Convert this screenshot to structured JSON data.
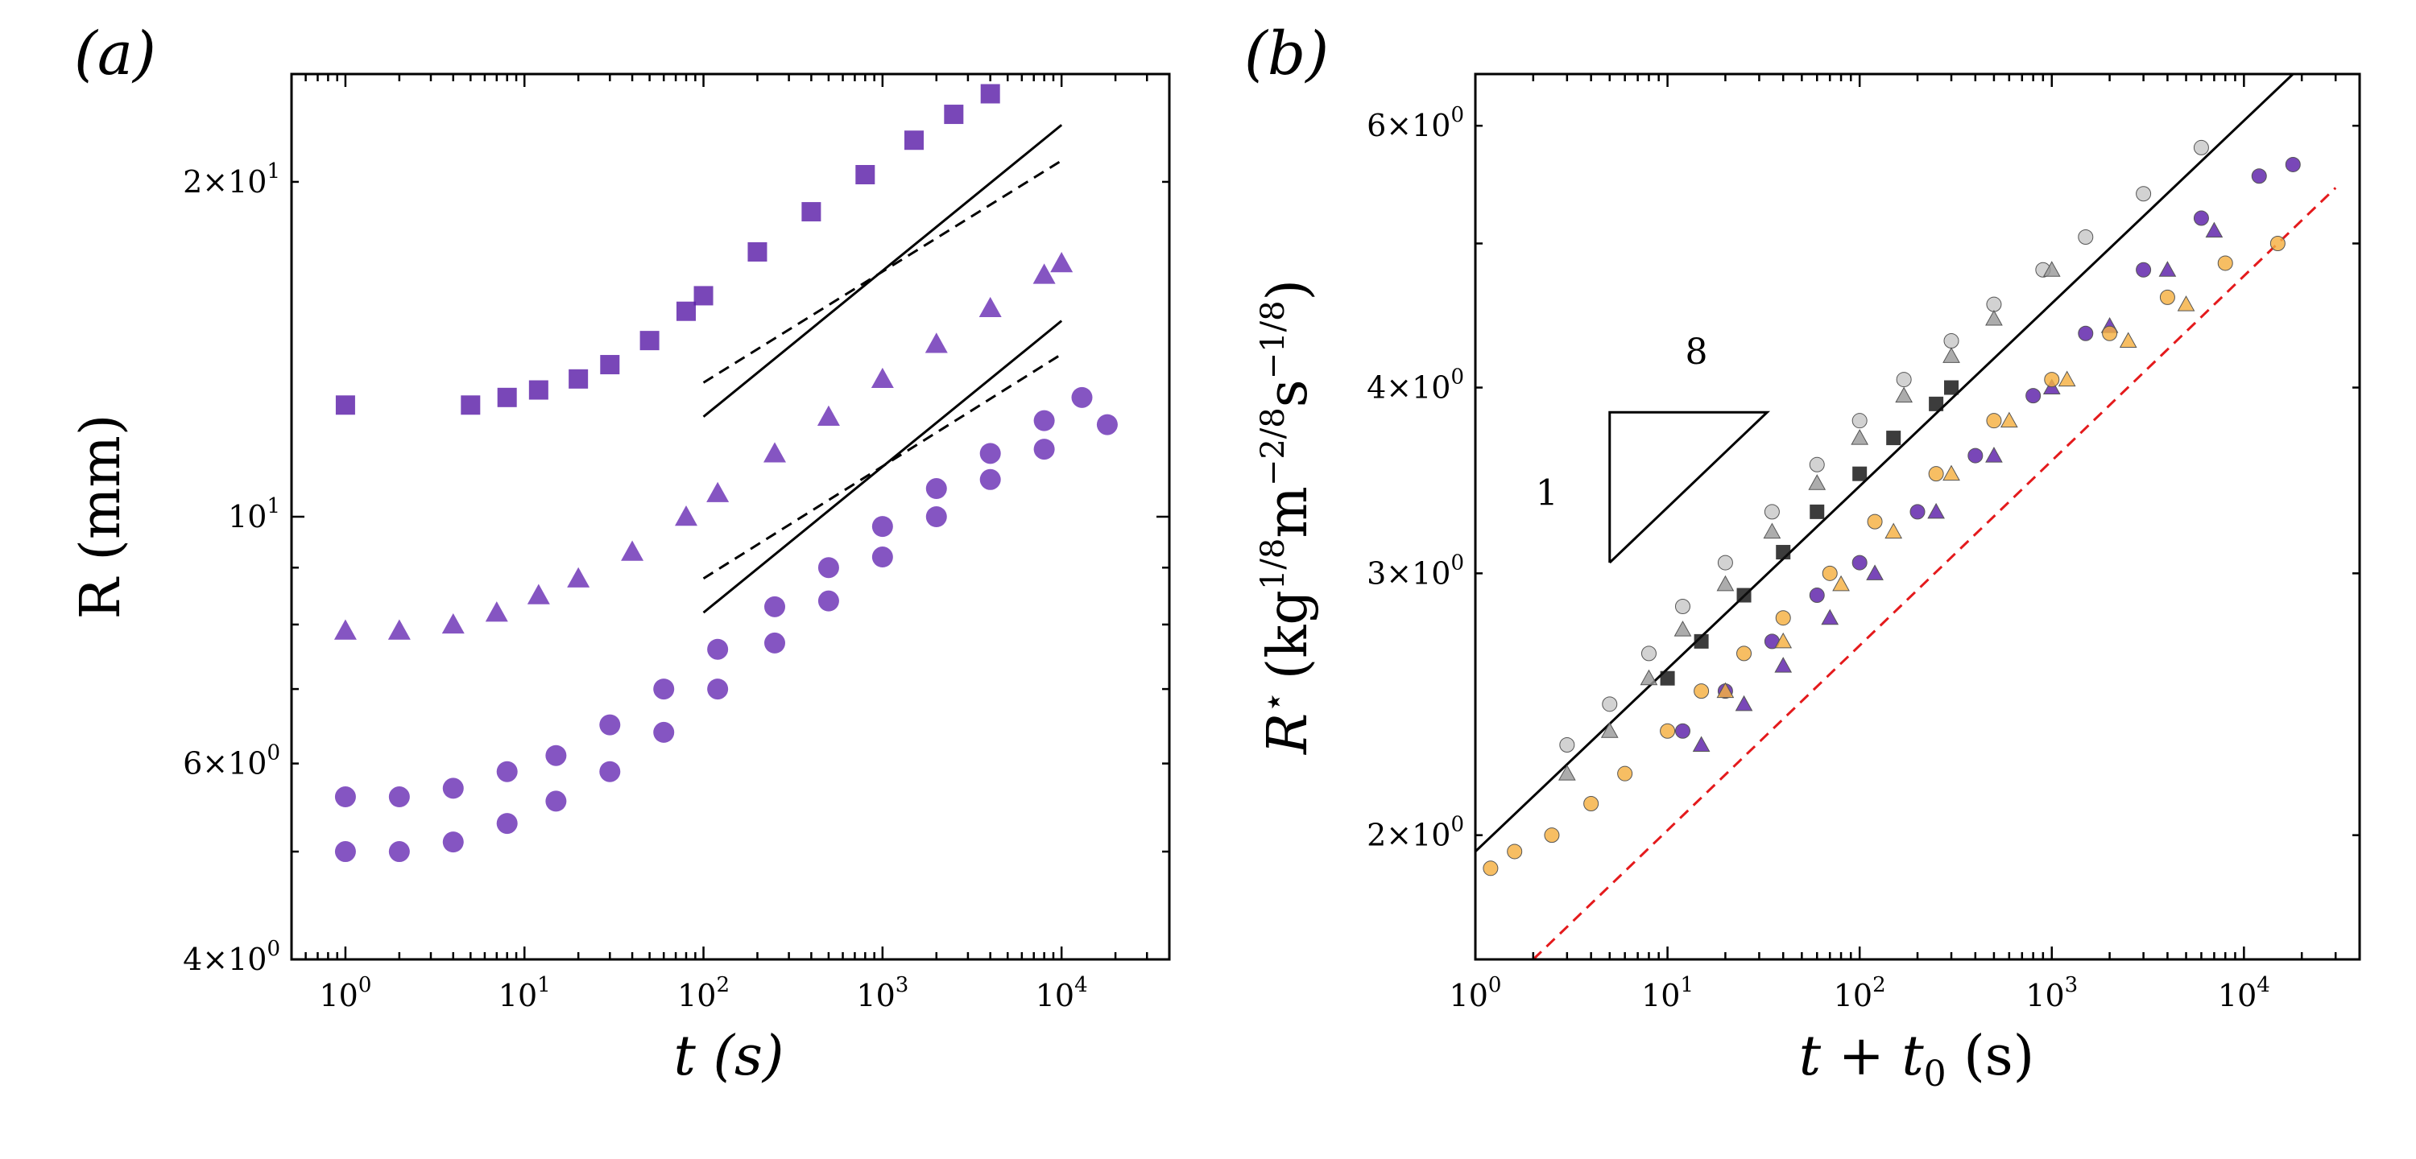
{
  "chart_data": [
    {
      "type": "scatter",
      "panel_label": "(a)",
      "xlabel": "t (s)",
      "ylabel": "R (mm)",
      "xscale": "log",
      "yscale": "log",
      "xlim": [
        0.5,
        40000
      ],
      "ylim": [
        4,
        25
      ],
      "xticks": [
        {
          "value": 1,
          "base": "10",
          "exp": "0"
        },
        {
          "value": 10,
          "base": "10",
          "exp": "1"
        },
        {
          "value": 100,
          "base": "10",
          "exp": "2"
        },
        {
          "value": 1000,
          "base": "10",
          "exp": "3"
        },
        {
          "value": 10000,
          "base": "10",
          "exp": "4"
        }
      ],
      "yticks": [
        {
          "value": 4,
          "text": "4×10",
          "exp": "0"
        },
        {
          "value": 6,
          "text": "6×10",
          "exp": "0"
        },
        {
          "value": 10,
          "text": "10",
          "exp": "1"
        },
        {
          "value": 20,
          "text": "2×10",
          "exp": "1"
        }
      ],
      "series": [
        {
          "name": "squares",
          "marker": "square",
          "color": "#5b1fa8",
          "x": [
            1,
            5,
            8,
            12,
            20,
            30,
            50,
            80,
            100,
            200,
            400,
            800,
            1500,
            2500,
            4000
          ],
          "y": [
            12.6,
            12.6,
            12.8,
            13.0,
            13.3,
            13.7,
            14.4,
            15.3,
            15.8,
            17.3,
            18.8,
            20.3,
            21.8,
            23.0,
            24.0
          ]
        },
        {
          "name": "triangles",
          "marker": "triangle",
          "color": "#6a2fb5",
          "x": [
            1,
            2,
            4,
            7,
            12,
            20,
            40,
            80,
            120,
            250,
            500,
            1000,
            2000,
            4000,
            8000,
            10000
          ],
          "y": [
            7.9,
            7.9,
            8.0,
            8.2,
            8.5,
            8.8,
            9.3,
            10.0,
            10.5,
            11.4,
            12.3,
            13.3,
            14.3,
            15.4,
            16.5,
            16.9
          ]
        },
        {
          "name": "circles upper",
          "marker": "circle",
          "color": "#6a2fb5",
          "x": [
            1,
            2,
            4,
            8,
            15,
            30,
            60,
            120,
            250,
            500,
            1000,
            2000,
            4000,
            8000,
            13000
          ],
          "y": [
            5.6,
            5.6,
            5.7,
            5.9,
            6.1,
            6.5,
            7.0,
            7.6,
            8.3,
            9.0,
            9.8,
            10.6,
            11.4,
            12.2,
            12.8
          ]
        },
        {
          "name": "circles lower",
          "marker": "circle",
          "color": "#6a2fb5",
          "x": [
            1,
            2,
            4,
            8,
            15,
            30,
            60,
            120,
            250,
            500,
            1000,
            2000,
            4000,
            8000,
            18000
          ],
          "y": [
            5.0,
            5.0,
            5.1,
            5.3,
            5.55,
            5.9,
            6.4,
            7.0,
            7.7,
            8.4,
            9.2,
            10.0,
            10.8,
            11.5,
            12.1
          ]
        }
      ],
      "reference_lines": [
        {
          "style": "solid",
          "x": [
            100,
            10000
          ],
          "y": [
            12.3,
            22.5
          ]
        },
        {
          "style": "dashed",
          "x": [
            100,
            10000
          ],
          "y": [
            13.2,
            20.9
          ]
        },
        {
          "style": "solid",
          "x": [
            100,
            10000
          ],
          "y": [
            8.2,
            15.0
          ]
        },
        {
          "style": "dashed",
          "x": [
            100,
            10000
          ],
          "y": [
            8.8,
            14.0
          ]
        }
      ]
    },
    {
      "type": "scatter",
      "panel_label": "(b)",
      "xlabel": "t + t0 (s)",
      "xlabel_parts": {
        "t": "t",
        "plus": " + ",
        "t0": "t",
        "sub": "0",
        "unit": " (s)"
      },
      "ylabel": "R⋆ (kg1/8m−2/8s−1/8)",
      "ylabel_parts": {
        "R": "R",
        "star": "⋆",
        "open": "(kg",
        "e1": "1/8",
        "m": "m",
        "e2": "−2/8",
        "s": "s",
        "e3": "−1/8",
        "close": ")"
      },
      "xscale": "log",
      "yscale": "log",
      "xlim": [
        1,
        40000
      ],
      "ylim": [
        1.65,
        6.5
      ],
      "xticks": [
        {
          "value": 1,
          "base": "10",
          "exp": "0"
        },
        {
          "value": 10,
          "base": "10",
          "exp": "1"
        },
        {
          "value": 100,
          "base": "10",
          "exp": "2"
        },
        {
          "value": 1000,
          "base": "10",
          "exp": "3"
        },
        {
          "value": 10000,
          "base": "10",
          "exp": "4"
        }
      ],
      "yticks": [
        {
          "value": 2,
          "text": "2×10",
          "exp": "0"
        },
        {
          "value": 3,
          "text": "3×10",
          "exp": "0"
        },
        {
          "value": 4,
          "text": "4×10",
          "exp": "0"
        },
        {
          "value": 6,
          "text": "6×10",
          "exp": "0"
        }
      ],
      "slope_triangle": {
        "run_label": "8",
        "rise_label": "1",
        "x": [
          5,
          33
        ],
        "y": [
          3.05,
          3.85
        ]
      },
      "reference_lines": [
        {
          "style": "solid",
          "color": "#000000",
          "x": [
            1,
            18000
          ],
          "y": [
            1.95,
            6.5
          ]
        },
        {
          "style": "dashed",
          "color": "#e41a1c",
          "x": [
            2,
            30000
          ],
          "y": [
            1.65,
            5.45
          ]
        }
      ],
      "series": [
        {
          "name": "grey circles",
          "marker": "circle",
          "color": "#c8c8c8",
          "x": [
            3,
            5,
            8,
            12,
            20,
            35,
            60,
            100,
            170,
            300,
            500,
            900,
            1500,
            3000,
            6000
          ],
          "y": [
            2.3,
            2.45,
            2.65,
            2.85,
            3.05,
            3.3,
            3.55,
            3.8,
            4.05,
            4.3,
            4.55,
            4.8,
            5.05,
            5.4,
            5.8
          ]
        },
        {
          "name": "grey triangles",
          "marker": "triangle",
          "color": "#9a9a9a",
          "x": [
            3,
            5,
            8,
            12,
            20,
            35,
            60,
            100,
            170,
            300,
            500,
            1000
          ],
          "y": [
            2.2,
            2.35,
            2.55,
            2.75,
            2.95,
            3.2,
            3.45,
            3.7,
            3.95,
            4.2,
            4.45,
            4.8
          ]
        },
        {
          "name": "black squares",
          "marker": "square",
          "color": "#111111",
          "x": [
            10,
            15,
            25,
            40,
            60,
            100,
            150,
            250,
            300
          ],
          "y": [
            2.55,
            2.7,
            2.9,
            3.1,
            3.3,
            3.5,
            3.7,
            3.9,
            4.0
          ]
        },
        {
          "name": "purple circles",
          "marker": "circle",
          "color": "#5b1fa8",
          "x": [
            12,
            20,
            35,
            60,
            100,
            200,
            400,
            800,
            1500,
            3000,
            6000,
            12000,
            18000
          ],
          "y": [
            2.35,
            2.5,
            2.7,
            2.9,
            3.05,
            3.3,
            3.6,
            3.95,
            4.35,
            4.8,
            5.2,
            5.55,
            5.65
          ]
        },
        {
          "name": "purple triangles",
          "marker": "triangle",
          "color": "#5b1fa8",
          "x": [
            15,
            25,
            40,
            70,
            120,
            250,
            500,
            1000,
            2000,
            4000,
            7000
          ],
          "y": [
            2.3,
            2.45,
            2.6,
            2.8,
            3.0,
            3.3,
            3.6,
            4.0,
            4.4,
            4.8,
            5.1
          ]
        },
        {
          "name": "orange circles",
          "marker": "circle",
          "color": "#f5b041",
          "x": [
            1.2,
            1.6,
            2.5,
            4,
            6,
            10,
            15,
            25,
            40,
            70,
            120,
            250,
            500,
            1000,
            2000,
            4000,
            8000,
            15000
          ],
          "y": [
            1.9,
            1.95,
            2.0,
            2.1,
            2.2,
            2.35,
            2.5,
            2.65,
            2.8,
            3.0,
            3.25,
            3.5,
            3.8,
            4.05,
            4.35,
            4.6,
            4.85,
            5.0
          ]
        },
        {
          "name": "orange triangles",
          "marker": "triangle",
          "color": "#f5b041",
          "x": [
            20,
            40,
            80,
            150,
            300,
            600,
            1200,
            2500,
            5000
          ],
          "y": [
            2.5,
            2.7,
            2.95,
            3.2,
            3.5,
            3.8,
            4.05,
            4.3,
            4.55
          ]
        }
      ]
    }
  ]
}
